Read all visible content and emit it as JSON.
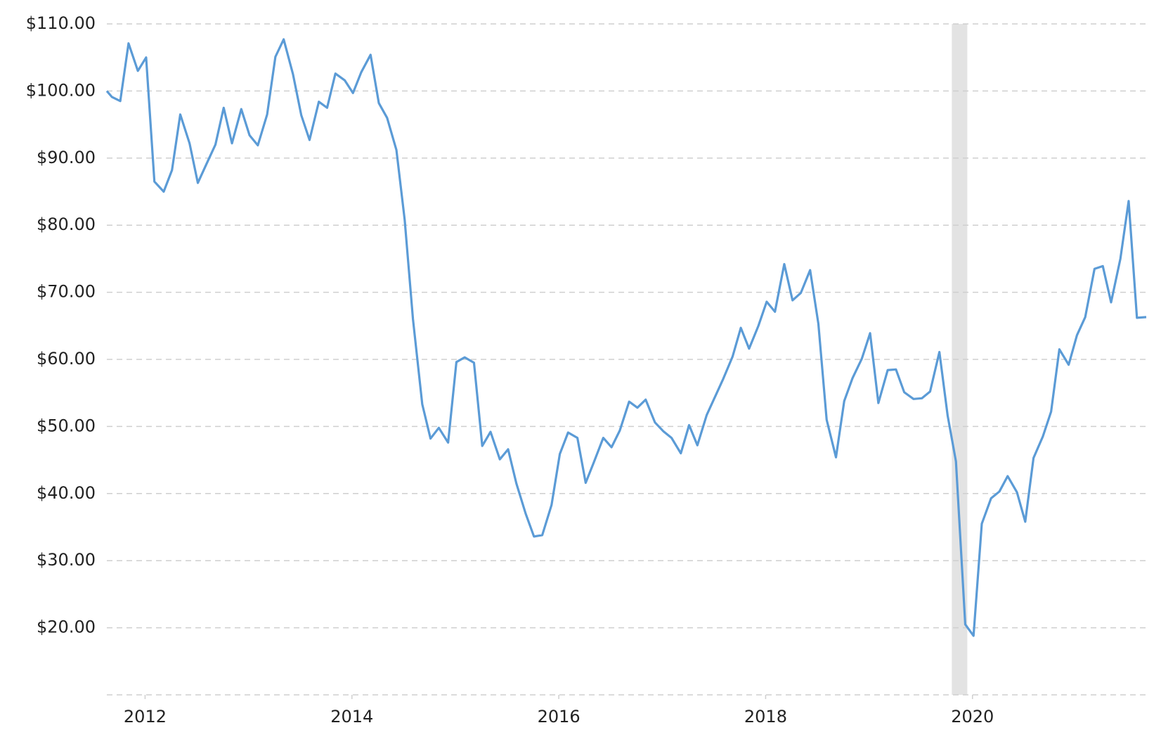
{
  "chart_data": {
    "type": "line",
    "x": [
      2011.63,
      2011.68,
      2011.76,
      2011.84,
      2011.93,
      2012.01,
      2012.09,
      2012.18,
      2012.26,
      2012.34,
      2012.43,
      2012.51,
      2012.59,
      2012.68,
      2012.76,
      2012.84,
      2012.93,
      2013.01,
      2013.09,
      2013.18,
      2013.26,
      2013.34,
      2013.43,
      2013.51,
      2013.59,
      2013.68,
      2013.76,
      2013.84,
      2013.93,
      2014.01,
      2014.09,
      2014.18,
      2014.26,
      2014.34,
      2014.43,
      2014.51,
      2014.59,
      2014.68,
      2014.76,
      2014.84,
      2014.93,
      2015.01,
      2015.09,
      2015.18,
      2015.26,
      2015.34,
      2015.43,
      2015.51,
      2015.59,
      2015.68,
      2015.76,
      2015.84,
      2015.93,
      2016.01,
      2016.09,
      2016.18,
      2016.26,
      2016.34,
      2016.43,
      2016.51,
      2016.59,
      2016.68,
      2016.76,
      2016.84,
      2016.93,
      2017.01,
      2017.09,
      2017.18,
      2017.26,
      2017.34,
      2017.43,
      2017.51,
      2017.59,
      2017.68,
      2017.76,
      2017.84,
      2017.93,
      2018.01,
      2018.09,
      2018.18,
      2018.26,
      2018.34,
      2018.43,
      2018.51,
      2018.59,
      2018.68,
      2018.76,
      2018.84,
      2018.93,
      2019.01,
      2019.09,
      2019.18,
      2019.26,
      2019.34,
      2019.43,
      2019.51,
      2019.59,
      2019.68,
      2019.76,
      2019.84,
      2019.93,
      2020.01,
      2020.09,
      2020.18,
      2020.26,
      2020.34,
      2020.43,
      2020.51,
      2020.59,
      2020.68,
      2020.76,
      2020.84,
      2020.93,
      2021.01,
      2021.09,
      2021.18,
      2021.26,
      2021.34,
      2021.43,
      2021.51,
      2021.59,
      2021.68
    ],
    "series": [
      {
        "color": "#5b9bd6",
        "values": [
          100.0,
          99.1,
          98.5,
          107.1,
          103.0,
          105.0,
          86.5,
          85.0,
          88.2,
          96.5,
          92.2,
          86.3,
          89.0,
          92.0,
          97.5,
          92.2,
          97.3,
          93.4,
          91.9,
          96.5,
          105.1,
          107.7,
          102.5,
          96.4,
          92.7,
          98.4,
          97.5,
          102.6,
          101.6,
          99.7,
          102.8,
          105.4,
          98.2,
          96.0,
          91.2,
          80.8,
          66.0,
          53.3,
          48.2,
          49.8,
          47.6,
          59.6,
          60.3,
          59.5,
          47.1,
          49.2,
          45.1,
          46.6,
          41.5,
          37.0,
          33.6,
          33.8,
          38.3,
          45.9,
          49.1,
          48.3,
          41.6,
          44.7,
          48.3,
          46.9,
          49.4,
          53.7,
          52.8,
          54.0,
          50.6,
          49.3,
          48.3,
          46.0,
          50.2,
          47.2,
          51.7,
          54.4,
          57.1,
          60.4,
          64.7,
          61.6,
          65.0,
          68.6,
          67.1,
          74.2,
          68.8,
          69.9,
          73.3,
          65.3,
          51.0,
          45.4,
          53.8,
          57.2,
          60.1,
          63.9,
          53.5,
          58.4,
          58.5,
          55.1,
          54.1,
          54.2,
          55.2,
          61.1,
          51.6,
          44.8,
          20.5,
          18.8,
          35.5,
          39.3,
          40.3,
          42.6,
          40.2,
          35.8,
          45.3,
          48.5,
          52.2,
          61.5,
          59.2,
          63.6,
          66.3,
          73.5,
          73.9,
          68.5,
          75.0,
          83.6,
          66.2,
          66.3
        ]
      }
    ],
    "shade_x": [
      2019.8,
      2019.95
    ],
    "xlim": [
      2011.63,
      2021.68
    ],
    "xticks": [
      2012,
      2014,
      2016,
      2018,
      2020
    ],
    "ylim": [
      10,
      110
    ],
    "yticks": [
      {
        "value": 20,
        "label": "$20.00"
      },
      {
        "value": 30,
        "label": "$30.00"
      },
      {
        "value": 40,
        "label": "$40.00"
      },
      {
        "value": 50,
        "label": "$50.00"
      },
      {
        "value": 60,
        "label": "$60.00"
      },
      {
        "value": 70,
        "label": "$70.00"
      },
      {
        "value": 80,
        "label": "$80.00"
      },
      {
        "value": 90,
        "label": "$90.00"
      },
      {
        "value": 100,
        "label": "$100.00"
      },
      {
        "value": 110,
        "label": "$110.00"
      }
    ],
    "grid": true
  }
}
